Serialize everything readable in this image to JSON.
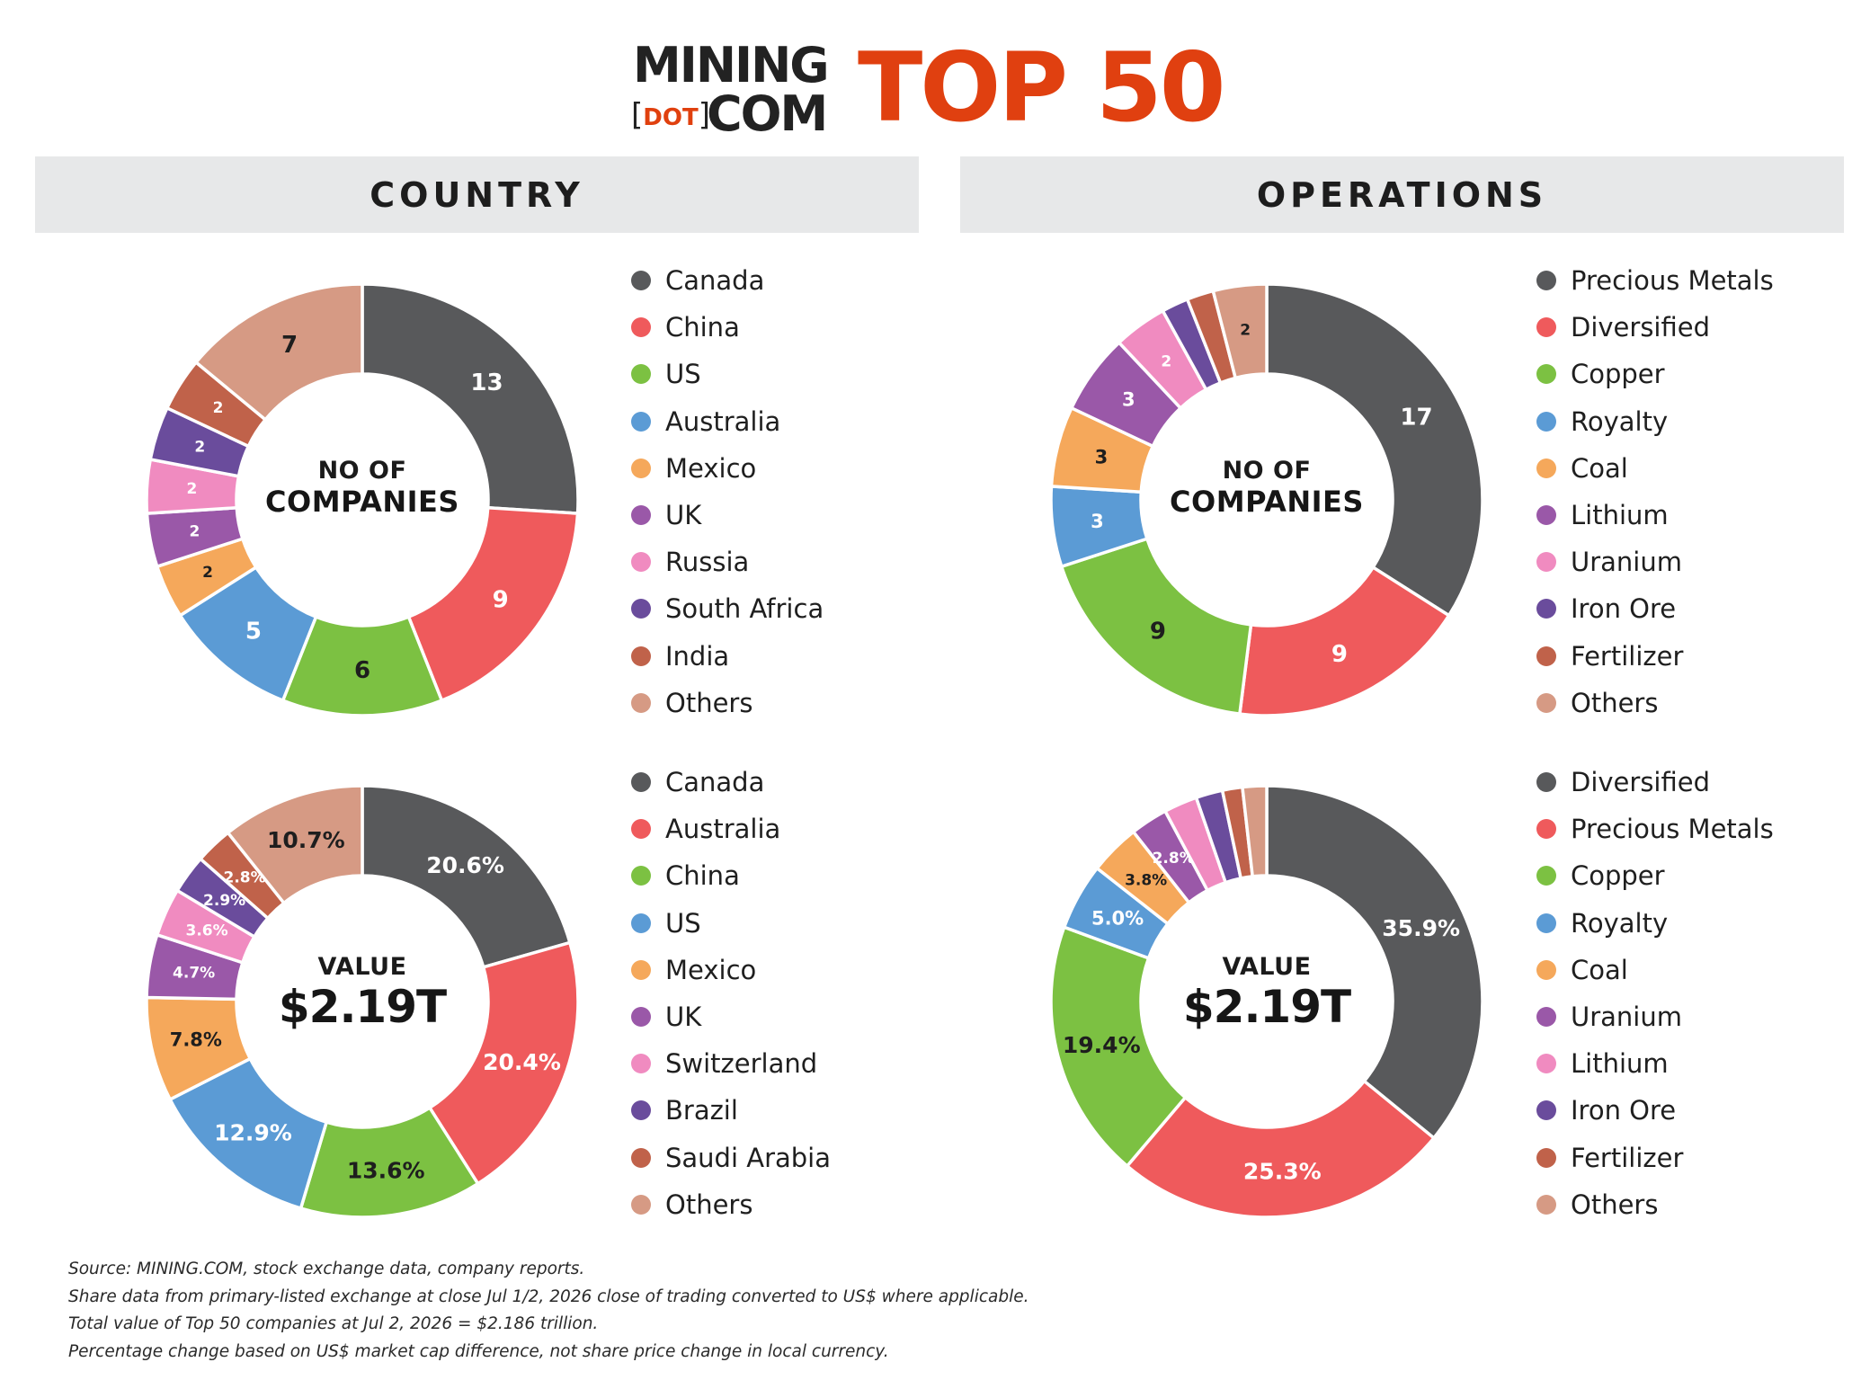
{
  "logo": {
    "mining": "MINING",
    "dot": "DOT",
    "com": "COM",
    "top": "TOP 50"
  },
  "headers": {
    "country": "COUNTRY",
    "operations": "OPERATIONS"
  },
  "chart_data": [
    {
      "type": "pie",
      "id": "country-count",
      "center_label": [
        "NO OF",
        "COMPANIES"
      ],
      "categories": [
        "Canada",
        "China",
        "US",
        "Australia",
        "Mexico",
        "UK",
        "Russia",
        "South Africa",
        "India",
        "Others"
      ],
      "values": [
        13,
        9,
        6,
        5,
        2,
        2,
        2,
        2,
        2,
        7
      ],
      "labels": [
        "13",
        "9",
        "6",
        "5",
        "2",
        "2",
        "2",
        "2",
        "2",
        "7"
      ],
      "colors": [
        "#58595b",
        "#ef5a5c",
        "#7cc142",
        "#5b9bd5",
        "#f5a85b",
        "#9a58a8",
        "#f08bc0",
        "#6a4c9c",
        "#c0624a",
        "#d69a84"
      ]
    },
    {
      "type": "pie",
      "id": "operations-count",
      "center_label": [
        "NO OF",
        "COMPANIES"
      ],
      "categories": [
        "Precious Metals",
        "Diversified",
        "Copper",
        "Royalty",
        "Coal",
        "Lithium",
        "Uranium",
        "Iron Ore",
        "Fertilizer",
        "Others"
      ],
      "values": [
        17,
        9,
        9,
        3,
        3,
        3,
        2,
        1,
        1,
        2
      ],
      "labels": [
        "17",
        "9",
        "9",
        "3",
        "3",
        "3",
        "2",
        "",
        "",
        "2"
      ],
      "colors": [
        "#58595b",
        "#ef5a5c",
        "#7cc142",
        "#5b9bd5",
        "#f5a85b",
        "#9a58a8",
        "#f08bc0",
        "#6a4c9c",
        "#c0624a",
        "#d69a84"
      ]
    },
    {
      "type": "pie",
      "id": "country-value",
      "center_label": [
        "VALUE",
        "$2.19T"
      ],
      "categories": [
        "Canada",
        "Australia",
        "China",
        "US",
        "Mexico",
        "UK",
        "Switzerland",
        "Brazil",
        "Saudi Arabia",
        "Others"
      ],
      "values": [
        20.6,
        20.4,
        13.6,
        12.9,
        7.8,
        4.7,
        3.6,
        2.9,
        2.8,
        10.7
      ],
      "labels": [
        "20.6%",
        "20.4%",
        "13.6%",
        "12.9%",
        "7.8%",
        "4.7%",
        "3.6%",
        "2.9%",
        "2.8%",
        "10.7%"
      ],
      "colors": [
        "#58595b",
        "#ef5a5c",
        "#7cc142",
        "#5b9bd5",
        "#f5a85b",
        "#9a58a8",
        "#f08bc0",
        "#6a4c9c",
        "#c0624a",
        "#d69a84"
      ]
    },
    {
      "type": "pie",
      "id": "operations-value",
      "center_label": [
        "VALUE",
        "$2.19T"
      ],
      "categories": [
        "Diversified",
        "Precious Metals",
        "Copper",
        "Royalty",
        "Coal",
        "Uranium",
        "Lithium",
        "Iron Ore",
        "Fertilizer",
        "Others"
      ],
      "values": [
        35.9,
        25.3,
        19.4,
        5.0,
        3.8,
        2.8,
        2.5,
        2.0,
        1.5,
        1.8
      ],
      "labels": [
        "35.9%",
        "25.3%",
        "19.4%",
        "5.0%",
        "3.8%",
        "2.8%",
        "",
        "",
        "",
        ""
      ],
      "colors": [
        "#58595b",
        "#ef5a5c",
        "#7cc142",
        "#5b9bd5",
        "#f5a85b",
        "#9a58a8",
        "#f08bc0",
        "#6a4c9c",
        "#c0624a",
        "#d69a84"
      ]
    }
  ],
  "footnotes": [
    "Source: MINING.COM, stock exchange data, company reports.",
    "Share data from primary-listed exchange at close Jul 1/2, 2026 close of trading converted to US$ where applicable.",
    "Total value of Top 50 companies at Jul 2, 2026 = $2.186 trillion.",
    "Percentage change based on US$ market cap difference, not share price change in local currency."
  ]
}
